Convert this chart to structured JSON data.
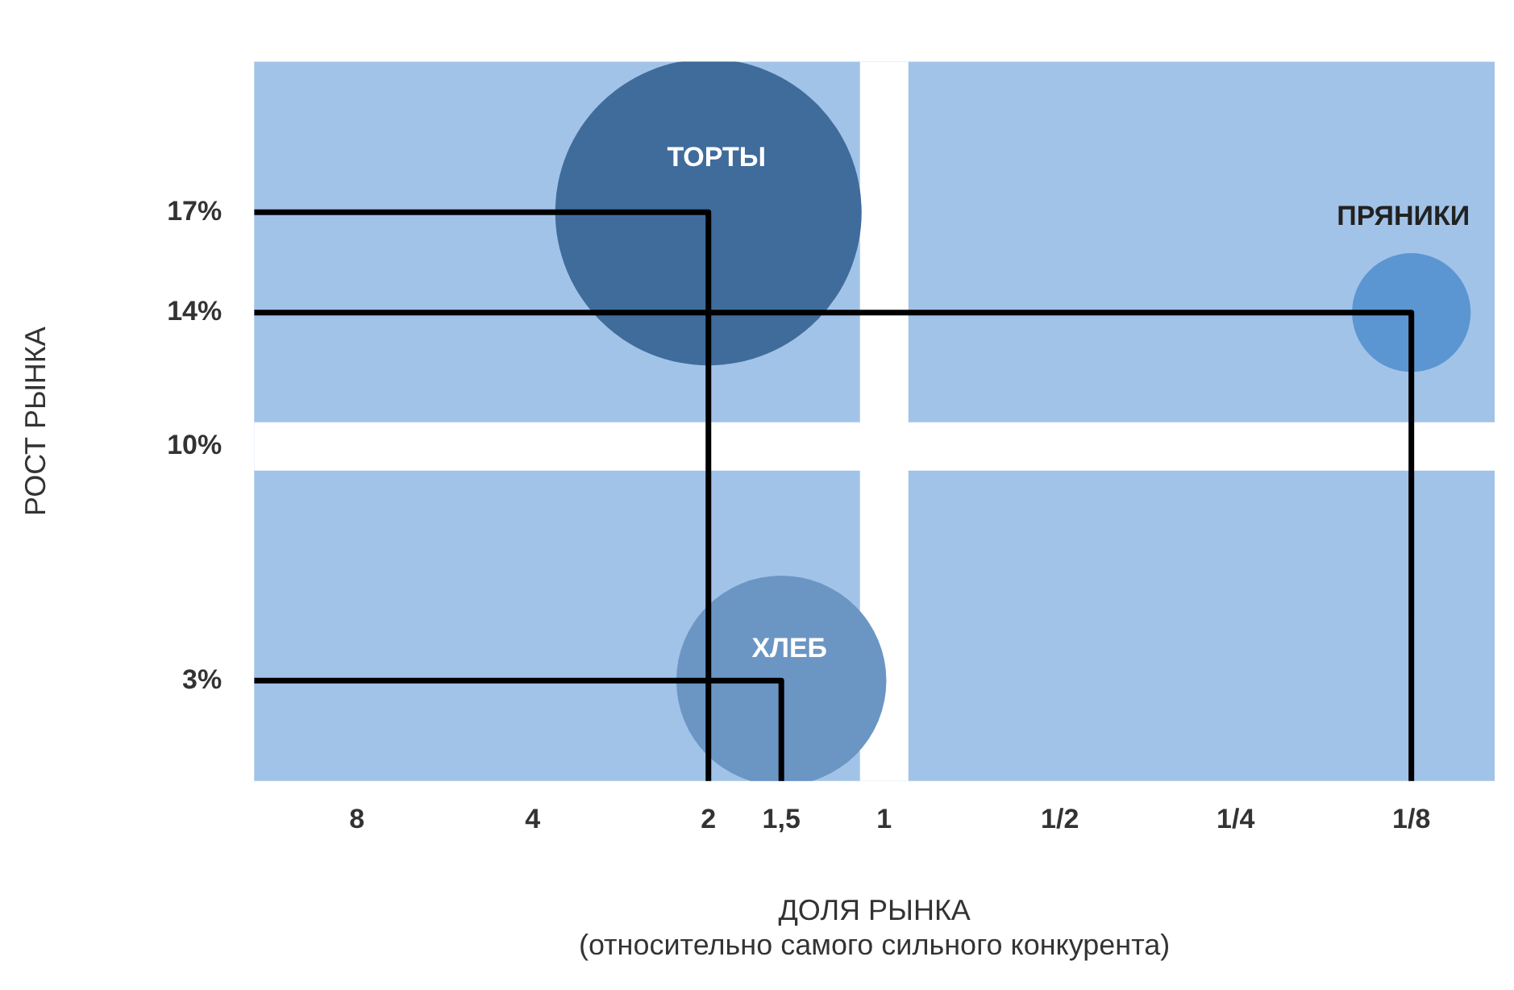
{
  "chart_data": {
    "type": "bubble",
    "xlabel": "ДОЛЯ РЫНКА\n(относительно самого сильного конкурента)",
    "ylabel": "РОСТ РЫНКА",
    "log": "x",
    "xlim": [
      12,
      0.09
    ],
    "xticks": [
      8,
      4,
      2,
      {
        "value": 1.5,
        "label": "1,5"
      },
      1,
      {
        "value": 0.5,
        "label": "1/2"
      },
      {
        "value": 0.25,
        "label": "1/4"
      },
      {
        "value": 0.125,
        "label": "1/8"
      }
    ],
    "ylim": [
      0,
      21.5
    ],
    "yticks": [
      {
        "value": 3,
        "label": "3%"
      },
      {
        "value": 10,
        "label": "10%"
      },
      {
        "value": 14,
        "label": "14%"
      },
      {
        "value": 17,
        "label": "17%"
      }
    ],
    "grid": false,
    "legend": false,
    "ref_lines": [
      {
        "axis": "x",
        "value": 1,
        "color": "#ffffff"
      },
      {
        "axis": "y",
        "value": 10,
        "color": "#ffffff"
      }
    ],
    "series": [
      {
        "name": "ТОРТЫ",
        "color": "#3f6c9b",
        "x": [
          2
        ],
        "values": [
          17
        ],
        "sizes": [
          1
        ]
      },
      {
        "name": "ХЛЕБ",
        "color": "#6b96c4",
        "x": [
          1.5
        ],
        "values": [
          3
        ],
        "sizes": [
          0.47
        ]
      },
      {
        "name": "ПРЯНИКИ",
        "color": "#5b96d2",
        "x": [
          0.125
        ],
        "values": [
          14
        ],
        "sizes": [
          0.15
        ]
      },
      {
        "type": "line",
        "color": "#000000",
        "x": [
          12,
          2,
          2
        ],
        "values": [
          17,
          17,
          0
        ]
      },
      {
        "type": "line",
        "color": "#000000",
        "x": [
          12,
          0.125,
          0.125
        ],
        "values": [
          14,
          14,
          0
        ]
      },
      {
        "type": "line",
        "color": "#000000",
        "x": [
          12,
          1.5,
          1.5
        ],
        "values": [
          3,
          3,
          0
        ]
      }
    ]
  }
}
